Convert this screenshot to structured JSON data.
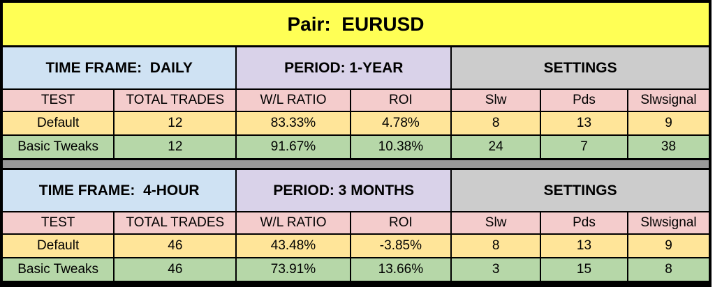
{
  "pair_title": "Pair:  EURUSD",
  "columns": [
    "TEST",
    "TOTAL TRADES",
    "W/L RATIO",
    "ROI",
    "Slw",
    "Pds",
    "Slwsignal"
  ],
  "tables": [
    {
      "time_frame": "TIME FRAME:  DAILY",
      "period": "PERIOD: 1-YEAR",
      "settings": "SETTINGS",
      "rows": [
        {
          "name": "Default",
          "cells": [
            "Default",
            "12",
            "83.33%",
            "4.78%",
            "8",
            "13",
            "9"
          ]
        },
        {
          "name": "Basic Tweaks",
          "cells": [
            "Basic Tweaks",
            "12",
            "91.67%",
            "10.38%",
            "24",
            "7",
            "38"
          ]
        }
      ]
    },
    {
      "time_frame": "TIME FRAME:  4-HOUR",
      "period": "PERIOD: 3 MONTHS",
      "settings": "SETTINGS",
      "rows": [
        {
          "name": "Default",
          "cells": [
            "Default",
            "46",
            "43.48%",
            "-3.85%",
            "8",
            "13",
            "9"
          ]
        },
        {
          "name": "Basic Tweaks",
          "cells": [
            "Basic Tweaks",
            "46",
            "73.91%",
            "13.66%",
            "3",
            "15",
            "8"
          ]
        }
      ]
    }
  ],
  "colors": {
    "pair_header_bg": "#FFFF55",
    "time_frame_bg": "#CFE2F3",
    "period_bg": "#D9D2E9",
    "settings_bg": "#CCCCCC",
    "column_header_bg": "#F4CCCC",
    "default_row_bg": "#FFE599",
    "basic_tweaks_row_bg": "#B6D7A8",
    "divider_bg": "#999999",
    "grid_border": "#000000"
  }
}
